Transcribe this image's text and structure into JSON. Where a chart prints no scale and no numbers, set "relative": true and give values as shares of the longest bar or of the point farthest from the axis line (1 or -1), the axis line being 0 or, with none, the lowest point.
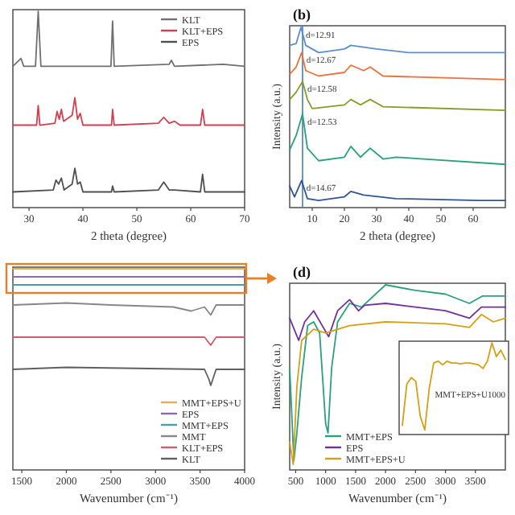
{
  "chart_data": [
    {
      "type": "line",
      "relative": true,
      "xlabel": "2 theta (degree)",
      "xlim": [
        27,
        70
      ],
      "xticks": [
        30,
        40,
        50,
        60,
        70
      ],
      "legend": "top right",
      "series": [
        {
          "name": "KLT",
          "color": "#707070",
          "x": [
            27,
            28.5,
            29,
            31.2,
            31.7,
            32.2,
            35,
            40,
            45.2,
            45.5,
            45.8,
            56,
            56.4,
            57,
            66,
            70
          ],
          "values": [
            0.72,
            0.76,
            0.72,
            0.72,
            1.0,
            0.72,
            0.72,
            0.72,
            0.72,
            0.95,
            0.72,
            0.73,
            0.75,
            0.72,
            0.73,
            0.72
          ]
        },
        {
          "name": "KLT+EPS",
          "color": "#d04050",
          "x": [
            27,
            31.4,
            31.7,
            32,
            34.8,
            35.2,
            35.6,
            36,
            36.4,
            38,
            38.5,
            39,
            39.5,
            40,
            45.3,
            45.5,
            45.8,
            54,
            55,
            56,
            57,
            58,
            61.8,
            62.2,
            62.6,
            70
          ],
          "values": [
            0.42,
            0.42,
            0.52,
            0.42,
            0.43,
            0.49,
            0.45,
            0.5,
            0.44,
            0.47,
            0.56,
            0.45,
            0.48,
            0.42,
            0.42,
            0.5,
            0.42,
            0.43,
            0.46,
            0.43,
            0.44,
            0.42,
            0.42,
            0.5,
            0.42,
            0.42
          ]
        },
        {
          "name": "EPS",
          "color": "#505050",
          "x": [
            27,
            34.5,
            35,
            35.5,
            36,
            36.5,
            38,
            38.5,
            39,
            39.5,
            40,
            45.3,
            45.5,
            45.8,
            54,
            55,
            56,
            57,
            61.8,
            62.2,
            62.6,
            70
          ],
          "values": [
            0.08,
            0.09,
            0.14,
            0.12,
            0.15,
            0.09,
            0.12,
            0.2,
            0.12,
            0.13,
            0.08,
            0.08,
            0.11,
            0.08,
            0.09,
            0.13,
            0.09,
            0.09,
            0.08,
            0.17,
            0.08,
            0.08
          ]
        }
      ]
    },
    {
      "type": "line",
      "relative": true,
      "title": "(b)",
      "xlabel": "2 theta (degree)",
      "ylabel": "Intensity (a.u.)",
      "xlim": [
        3,
        70
      ],
      "xticks": [
        10,
        20,
        30,
        40,
        50,
        60
      ],
      "ref_lines": [
        {
          "axis": "x",
          "value": 7,
          "color": "#4a7ab8"
        }
      ],
      "annotations": [
        "d=12.91",
        "d=12.67",
        "d=12.58",
        "d=12.53",
        "d=14.67"
      ],
      "series": [
        {
          "color": "#5b8fd0",
          "x": [
            3,
            5,
            6.5,
            8,
            12,
            20,
            22,
            30,
            40,
            70
          ],
          "values": [
            0.9,
            0.91,
            1,
            0.9,
            0.86,
            0.88,
            0.9,
            0.88,
            0.86,
            0.86
          ]
        },
        {
          "color": "#e8743b",
          "x": [
            3,
            5,
            6.7,
            8,
            12,
            20,
            22,
            26,
            28,
            32,
            70
          ],
          "values": [
            0.74,
            0.78,
            0.86,
            0.76,
            0.73,
            0.75,
            0.79,
            0.76,
            0.78,
            0.73,
            0.71
          ]
        },
        {
          "color": "#8a9a2a",
          "x": [
            3,
            5,
            7,
            8.5,
            10,
            20,
            22,
            25,
            28,
            32,
            70
          ],
          "values": [
            0.6,
            0.64,
            0.7,
            0.6,
            0.55,
            0.57,
            0.6,
            0.57,
            0.6,
            0.56,
            0.54
          ]
        },
        {
          "color": "#2aa178",
          "x": [
            3,
            5,
            7,
            8.5,
            12,
            20,
            22,
            25,
            28,
            32,
            36,
            70
          ],
          "values": [
            0.32,
            0.4,
            0.52,
            0.33,
            0.26,
            0.28,
            0.34,
            0.28,
            0.33,
            0.27,
            0.28,
            0.24
          ]
        },
        {
          "color": "#2f5597",
          "x": [
            3,
            4.5,
            6.7,
            8.5,
            12,
            20,
            22,
            26,
            36,
            62,
            70
          ],
          "values": [
            0.12,
            0.06,
            0.15,
            0.05,
            0.04,
            0.06,
            0.09,
            0.07,
            0.05,
            0.04,
            0.04
          ]
        }
      ]
    },
    {
      "type": "line",
      "relative": true,
      "xlabel": "Wavenumber (cm⁻¹)",
      "xlim": [
        1400,
        4000
      ],
      "xticks": [
        1500,
        2000,
        2500,
        3000,
        3500,
        4000
      ],
      "legend": "bottom right",
      "series": [
        {
          "name": "MMT+EPS+U",
          "color": "#e0b060",
          "x": [
            1400,
            4000
          ],
          "values": [
            1,
            1
          ]
        },
        {
          "name": "EPS",
          "color": "#8e6bb0",
          "x": [
            1400,
            4000
          ],
          "values": [
            0.96,
            0.96
          ]
        },
        {
          "name": "MMT+EPS",
          "color": "#4aa0a0",
          "x": [
            1400,
            4000
          ],
          "values": [
            0.92,
            0.92
          ]
        },
        {
          "name": "MMT",
          "color": "#888888",
          "x": [
            1400,
            2000,
            2500,
            3200,
            3400,
            3550,
            3620,
            3680,
            4000
          ],
          "values": [
            0.82,
            0.83,
            0.82,
            0.81,
            0.79,
            0.81,
            0.77,
            0.82,
            0.82
          ]
        },
        {
          "name": "KLT+EPS",
          "color": "#d06070",
          "x": [
            1400,
            3550,
            3620,
            3680,
            4000
          ],
          "values": [
            0.66,
            0.66,
            0.62,
            0.66,
            0.66
          ]
        },
        {
          "name": "KLT",
          "color": "#606060",
          "x": [
            1400,
            2000,
            3550,
            3600,
            3620,
            3650,
            3680,
            4000
          ],
          "values": [
            0.5,
            0.51,
            0.5,
            0.45,
            0.42,
            0.46,
            0.5,
            0.5
          ]
        }
      ]
    },
    {
      "type": "line",
      "relative": true,
      "title": "(d)",
      "xlabel": "Wavenumber (cm⁻¹)",
      "ylabel": "Intensity (a.u.)",
      "xlim": [
        400,
        4000
      ],
      "xticks": [
        500,
        1000,
        1500,
        2000,
        2500,
        3000,
        3500
      ],
      "legend": "bottom left",
      "series": [
        {
          "name": "MMT+EPS",
          "color": "#2aa178",
          "x": [
            400,
            470,
            520,
            600,
            700,
            800,
            900,
            1000,
            1040,
            1100,
            1200,
            1400,
            1600,
            2000,
            2500,
            3000,
            3400,
            3620,
            4000
          ],
          "values": [
            0.55,
            0.05,
            0.2,
            0.5,
            0.78,
            0.8,
            0.74,
            0.25,
            0.2,
            0.55,
            0.8,
            0.9,
            0.88,
            1,
            0.97,
            0.95,
            0.9,
            0.94,
            0.94
          ]
        },
        {
          "name": "EPS",
          "color": "#7030a0",
          "x": [
            400,
            550,
            650,
            800,
            1050,
            1200,
            1400,
            1550,
            1650,
            2000,
            2500,
            3000,
            3400,
            3600,
            4000
          ],
          "values": [
            0.82,
            0.7,
            0.8,
            0.86,
            0.72,
            0.86,
            0.92,
            0.86,
            0.89,
            0.9,
            0.88,
            0.86,
            0.82,
            0.88,
            0.88
          ]
        },
        {
          "name": "MMT+EPS+U",
          "color": "#d4a017",
          "x": [
            400,
            460,
            520,
            600,
            800,
            1000,
            1400,
            2000,
            3000,
            3400,
            3600,
            3800,
            4000
          ],
          "values": [
            0.15,
            0.03,
            0.45,
            0.7,
            0.76,
            0.74,
            0.78,
            0.8,
            0.79,
            0.77,
            0.84,
            0.8,
            0.82
          ]
        }
      ]
    },
    {
      "type": "line",
      "relative": true,
      "annotations": [
        "MMT+EPS+U1000"
      ],
      "categories": [
        null,
        null,
        null,
        null,
        null,
        null,
        null,
        null,
        null,
        null,
        null,
        null,
        null,
        null,
        null,
        null,
        null,
        null,
        null,
        null,
        null,
        null,
        null,
        null
      ],
      "series": [
        {
          "color": "#d4a017",
          "values": [
            0.1,
            0.55,
            0.62,
            0.58,
            0.2,
            0.05,
            0.5,
            0.78,
            0.8,
            0.76,
            0.8,
            0.78,
            0.78,
            0.77,
            0.78,
            0.78,
            0.77,
            0.76,
            0.72,
            0.8,
            1,
            0.85,
            0.92,
            0.82
          ]
        }
      ]
    }
  ]
}
